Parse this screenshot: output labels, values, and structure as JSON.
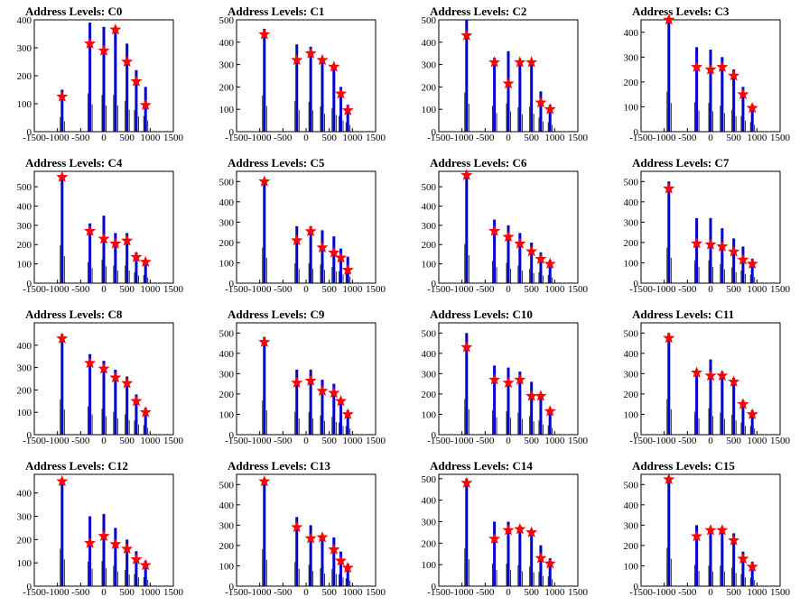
{
  "colors": {
    "spike": "#0000cc",
    "spike_dark": "#000000",
    "marker": "#ff0000",
    "axis": "#000000"
  },
  "chart_data": [
    {
      "type": "bar",
      "title": "Address Levels: C0",
      "xlim": [
        -1500,
        1500
      ],
      "ylim": [
        0,
        400
      ],
      "xticks": [
        "-1500",
        "-1000",
        "-500",
        "0",
        "500",
        "1000",
        "1500"
      ],
      "yticks": [
        "0",
        "100",
        "200",
        "300",
        "400"
      ],
      "x": [
        -900,
        -300,
        0,
        250,
        500,
        700,
        900
      ],
      "peaks": [
        150,
        390,
        375,
        375,
        315,
        220,
        160
      ],
      "markers": [
        125,
        315,
        290,
        365,
        250,
        180,
        95
      ]
    },
    {
      "type": "bar",
      "title": "Address Levels: C1",
      "xlim": [
        -1500,
        1500
      ],
      "ylim": [
        0,
        500
      ],
      "xticks": [
        "-1500",
        "-1000",
        "-500",
        "0",
        "500",
        "1000",
        "1500"
      ],
      "yticks": [
        "0",
        "100",
        "200",
        "300",
        "400",
        "500"
      ],
      "x": [
        -900,
        -200,
        100,
        350,
        600,
        750,
        900
      ],
      "peaks": [
        460,
        390,
        380,
        320,
        300,
        200,
        120
      ],
      "markers": [
        435,
        320,
        350,
        320,
        290,
        170,
        95
      ]
    },
    {
      "type": "bar",
      "title": "Address Levels: C2",
      "xlim": [
        -1500,
        1500
      ],
      "ylim": [
        0,
        500
      ],
      "xticks": [
        "-1500",
        "-1000",
        "-500",
        "0",
        "500",
        "1000",
        "1500"
      ],
      "yticks": [
        "0",
        "100",
        "200",
        "300",
        "400",
        "500"
      ],
      "x": [
        -900,
        -300,
        0,
        250,
        500,
        700,
        900
      ],
      "peaks": [
        500,
        330,
        360,
        310,
        320,
        180,
        120
      ],
      "markers": [
        430,
        310,
        215,
        310,
        310,
        130,
        100
      ]
    },
    {
      "type": "bar",
      "title": "Address Levels: C3",
      "xlim": [
        -1500,
        1500
      ],
      "ylim": [
        0,
        450
      ],
      "xticks": [
        "-1500",
        "-1000",
        "-500",
        "0",
        "500",
        "1000",
        "1500"
      ],
      "yticks": [
        "0",
        "100",
        "200",
        "300",
        "400"
      ],
      "x": [
        -900,
        -300,
        0,
        250,
        500,
        700,
        900
      ],
      "peaks": [
        460,
        340,
        330,
        300,
        250,
        180,
        110
      ],
      "markers": [
        450,
        260,
        250,
        260,
        225,
        150,
        95
      ]
    },
    {
      "type": "bar",
      "title": "Address Levels: C4",
      "xlim": [
        -1500,
        1500
      ],
      "ylim": [
        0,
        580
      ],
      "xticks": [
        "-1500",
        "-1000",
        "-500",
        "0",
        "500",
        "1000",
        "1500"
      ],
      "yticks": [
        "0",
        "100",
        "200",
        "300",
        "400",
        "500"
      ],
      "x": [
        -900,
        -300,
        0,
        250,
        500,
        700,
        900
      ],
      "peaks": [
        560,
        310,
        350,
        260,
        260,
        160,
        120
      ],
      "markers": [
        550,
        270,
        230,
        205,
        220,
        135,
        110
      ]
    },
    {
      "type": "bar",
      "title": "Address Levels: C5",
      "xlim": [
        -1500,
        1500
      ],
      "ylim": [
        0,
        550
      ],
      "xticks": [
        "-1500",
        "-1000",
        "-500",
        "0",
        "500",
        "1000",
        "1500"
      ],
      "yticks": [
        "0",
        "100",
        "200",
        "300",
        "400",
        "500"
      ],
      "x": [
        -900,
        -200,
        100,
        350,
        600,
        750,
        900
      ],
      "peaks": [
        500,
        280,
        280,
        260,
        230,
        170,
        130
      ],
      "markers": [
        500,
        210,
        255,
        175,
        150,
        125,
        65
      ]
    },
    {
      "type": "bar",
      "title": "Address Levels: C6",
      "xlim": [
        -1500,
        1500
      ],
      "ylim": [
        0,
        580
      ],
      "xticks": [
        "-1500",
        "-1000",
        "-500",
        "0",
        "500",
        "1000",
        "1500"
      ],
      "yticks": [
        "0",
        "100",
        "200",
        "300",
        "400",
        "500"
      ],
      "x": [
        -900,
        -300,
        0,
        250,
        500,
        700,
        900
      ],
      "peaks": [
        580,
        330,
        300,
        260,
        210,
        160,
        120
      ],
      "markers": [
        560,
        270,
        240,
        205,
        165,
        125,
        100
      ]
    },
    {
      "type": "bar",
      "title": "Address Levels: C7",
      "xlim": [
        -1500,
        1500
      ],
      "ylim": [
        0,
        550
      ],
      "xticks": [
        "-1500",
        "-1000",
        "-500",
        "0",
        "500",
        "1000",
        "1500"
      ],
      "yticks": [
        "0",
        "100",
        "200",
        "300",
        "400",
        "500"
      ],
      "x": [
        -900,
        -300,
        0,
        250,
        500,
        700,
        900
      ],
      "peaks": [
        500,
        320,
        320,
        270,
        220,
        180,
        120
      ],
      "markers": [
        465,
        195,
        190,
        180,
        155,
        115,
        95
      ]
    },
    {
      "type": "bar",
      "title": "Address Levels: C8",
      "xlim": [
        -1500,
        1500
      ],
      "ylim": [
        0,
        500
      ],
      "xticks": [
        "-1500",
        "-1000",
        "-500",
        "0",
        "500",
        "1000",
        "1500"
      ],
      "yticks": [
        "0",
        "100",
        "200",
        "300",
        "400"
      ],
      "x": [
        -900,
        -300,
        0,
        250,
        500,
        700,
        900
      ],
      "peaks": [
        450,
        360,
        330,
        290,
        260,
        180,
        120
      ],
      "markers": [
        430,
        320,
        295,
        255,
        230,
        150,
        100
      ]
    },
    {
      "type": "bar",
      "title": "Address Levels: C9",
      "xlim": [
        -1500,
        1500
      ],
      "ylim": [
        0,
        550
      ],
      "xticks": [
        "-1500",
        "-1000",
        "-500",
        "0",
        "500",
        "1000",
        "1500"
      ],
      "yticks": [
        "0",
        "100",
        "200",
        "300",
        "400",
        "500"
      ],
      "x": [
        -900,
        -200,
        100,
        350,
        600,
        750,
        900
      ],
      "peaks": [
        480,
        320,
        320,
        270,
        250,
        170,
        120
      ],
      "markers": [
        455,
        255,
        265,
        215,
        205,
        165,
        100
      ]
    },
    {
      "type": "bar",
      "title": "Address Levels: C10",
      "xlim": [
        -1500,
        1500
      ],
      "ylim": [
        0,
        550
      ],
      "xticks": [
        "-1500",
        "-1000",
        "-500",
        "0",
        "500",
        "1000",
        "1500"
      ],
      "yticks": [
        "0",
        "100",
        "200",
        "300",
        "400",
        "500"
      ],
      "x": [
        -900,
        -300,
        0,
        250,
        500,
        700,
        900
      ],
      "peaks": [
        500,
        340,
        330,
        310,
        260,
        200,
        130
      ],
      "markers": [
        430,
        270,
        255,
        270,
        190,
        190,
        115
      ]
    },
    {
      "type": "bar",
      "title": "Address Levels: C11",
      "xlim": [
        -1500,
        1500
      ],
      "ylim": [
        0,
        550
      ],
      "xticks": [
        "-1500",
        "-1000",
        "-500",
        "0",
        "500",
        "1000",
        "1500"
      ],
      "yticks": [
        "0",
        "100",
        "200",
        "300",
        "400",
        "500"
      ],
      "x": [
        -900,
        -300,
        0,
        250,
        500,
        700,
        900
      ],
      "peaks": [
        500,
        320,
        370,
        310,
        280,
        170,
        120
      ],
      "markers": [
        475,
        305,
        290,
        290,
        260,
        150,
        100
      ]
    },
    {
      "type": "bar",
      "title": "Address Levels: C12",
      "xlim": [
        -1500,
        1500
      ],
      "ylim": [
        0,
        480
      ],
      "xticks": [
        "-1500",
        "-1000",
        "-500",
        "0",
        "500",
        "1000",
        "1500"
      ],
      "yticks": [
        "0",
        "100",
        "200",
        "300",
        "400"
      ],
      "x": [
        -900,
        -300,
        0,
        250,
        500,
        700,
        900
      ],
      "peaks": [
        460,
        300,
        310,
        250,
        200,
        150,
        110
      ],
      "markers": [
        450,
        185,
        215,
        180,
        160,
        115,
        90
      ]
    },
    {
      "type": "bar",
      "title": "Address Levels: C13",
      "xlim": [
        -1500,
        1500
      ],
      "ylim": [
        0,
        550
      ],
      "xticks": [
        "-1500",
        "-1000",
        "-500",
        "0",
        "500",
        "1000",
        "1500"
      ],
      "yticks": [
        "0",
        "100",
        "200",
        "300",
        "400",
        "500"
      ],
      "x": [
        -900,
        -200,
        100,
        350,
        600,
        750,
        900
      ],
      "peaks": [
        520,
        340,
        300,
        250,
        240,
        170,
        110
      ],
      "markers": [
        515,
        290,
        235,
        240,
        180,
        125,
        90
      ]
    },
    {
      "type": "bar",
      "title": "Address Levels: C14",
      "xlim": [
        -1500,
        1500
      ],
      "ylim": [
        0,
        520
      ],
      "xticks": [
        "-1500",
        "-1000",
        "-500",
        "0",
        "500",
        "1000",
        "1500"
      ],
      "yticks": [
        "0",
        "100",
        "200",
        "300",
        "400",
        "500"
      ],
      "x": [
        -900,
        -300,
        0,
        250,
        500,
        700,
        900
      ],
      "peaks": [
        500,
        300,
        300,
        280,
        260,
        190,
        130
      ],
      "markers": [
        480,
        220,
        260,
        265,
        250,
        130,
        105
      ]
    },
    {
      "type": "bar",
      "title": "Address Levels: C15",
      "xlim": [
        -1500,
        1500
      ],
      "ylim": [
        0,
        550
      ],
      "xticks": [
        "-1500",
        "-1000",
        "-500",
        "0",
        "500",
        "1000",
        "1500"
      ],
      "yticks": [
        "0",
        "100",
        "200",
        "300",
        "400",
        "500"
      ],
      "x": [
        -900,
        -300,
        0,
        250,
        500,
        700,
        900
      ],
      "peaks": [
        540,
        300,
        290,
        290,
        260,
        170,
        120
      ],
      "markers": [
        525,
        245,
        275,
        275,
        225,
        135,
        95
      ]
    }
  ]
}
